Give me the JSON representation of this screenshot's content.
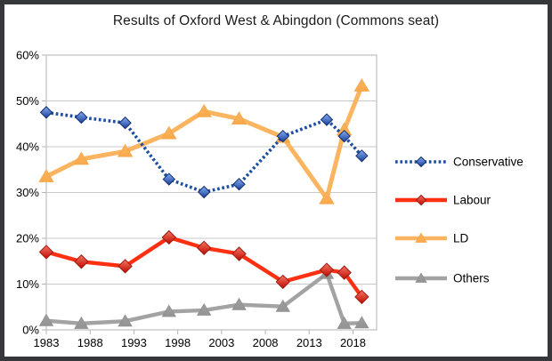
{
  "chart_data": {
    "type": "line",
    "title": "Results of Oxford West & Abingdon (Commons seat)",
    "xlabel": "",
    "ylabel": "",
    "ylim": [
      0,
      60
    ],
    "grid": true,
    "grid_color": "#c9c9c9",
    "axis_color": "#b3b3b3",
    "text_color": "#000000",
    "legend_position": "right",
    "x": [
      1983,
      1987,
      1992,
      1997,
      2001,
      2005,
      2010,
      2015,
      2017,
      2019
    ],
    "x_ticks": {
      "values": [
        1983,
        1988,
        1993,
        1998,
        2003,
        2008,
        2013,
        2018
      ],
      "labels": [
        "1983",
        "1988",
        "1993",
        "1998",
        "2003",
        "2008",
        "2013",
        "2018"
      ]
    },
    "y_ticks": {
      "values": [
        0,
        10,
        20,
        30,
        40,
        50,
        60
      ],
      "labels": [
        "0%",
        "10%",
        "20%",
        "30%",
        "40%",
        "50%",
        "60%"
      ]
    },
    "series": [
      {
        "name": "Conservative",
        "color": "#1d4fa1",
        "line_style": "dotted",
        "marker": "diamond",
        "marker_gradient": [
          "#86b0f4",
          "#1a3d96"
        ],
        "marker_edge": "#12306e",
        "values": [
          47.5,
          46.4,
          45.2,
          32.9,
          30.1,
          31.8,
          42.3,
          45.9,
          42.3,
          38.0
        ]
      },
      {
        "name": "Labour",
        "color": "#ff2f12",
        "line_style": "solid",
        "marker": "diamond",
        "marker_gradient": [
          "#f47564",
          "#c00a00"
        ],
        "marker_edge": "#9e1a10",
        "values": [
          17.0,
          14.9,
          13.9,
          20.2,
          17.9,
          16.6,
          10.5,
          13.1,
          12.5,
          7.2
        ]
      },
      {
        "name": "LD",
        "color": "#fbb45f",
        "line_style": "solid",
        "marker": "triangle",
        "marker_gradient": [
          "#fbb45f",
          "#f9a94a"
        ],
        "marker_edge": "#f3a648",
        "values": [
          33.5,
          37.3,
          39.0,
          42.9,
          47.7,
          46.1,
          42.1,
          28.7,
          43.7,
          53.3
        ]
      },
      {
        "name": "Others",
        "color": "#a3a3a3",
        "line_style": "solid",
        "marker": "triangle",
        "marker_gradient": [
          "#9e9e9e",
          "#949494"
        ],
        "marker_edge": "#8f8f8f",
        "values": [
          2.0,
          1.4,
          1.9,
          4.0,
          4.3,
          5.5,
          5.1,
          12.3,
          1.4,
          1.5
        ]
      }
    ]
  },
  "frame_color": "#35373b"
}
